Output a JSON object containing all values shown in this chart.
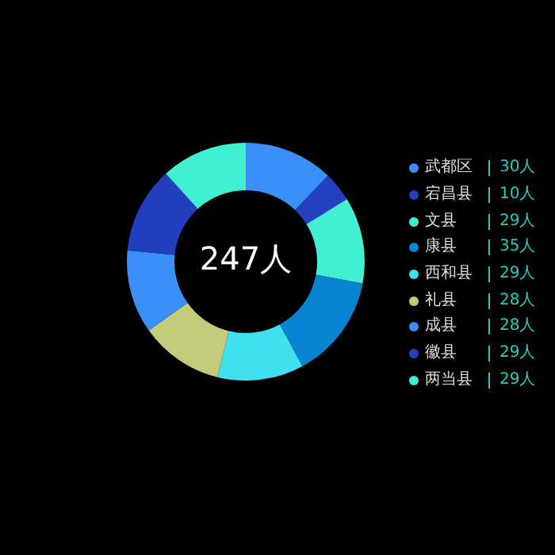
{
  "chart_data": {
    "type": "donut",
    "categories": [
      "武都区",
      "宕昌县",
      "文县",
      "康县",
      "西和县",
      "礼县",
      "成县",
      "徽县",
      "两当县"
    ],
    "values": [
      30,
      10,
      29,
      35,
      29,
      28,
      28,
      29,
      29
    ],
    "value_labels": [
      "30人",
      "10人",
      "29人",
      "35人",
      "29人",
      "28人",
      "28人",
      "29人",
      "29人"
    ],
    "colors": [
      "#3a8ef8",
      "#2240c0",
      "#40f0d0",
      "#0a84d0",
      "#40e0f0",
      "#c4cc7c",
      "#3a90f8",
      "#2040c0",
      "#40f0d0"
    ],
    "annotations": [
      "247人"
    ],
    "legend": "right"
  }
}
